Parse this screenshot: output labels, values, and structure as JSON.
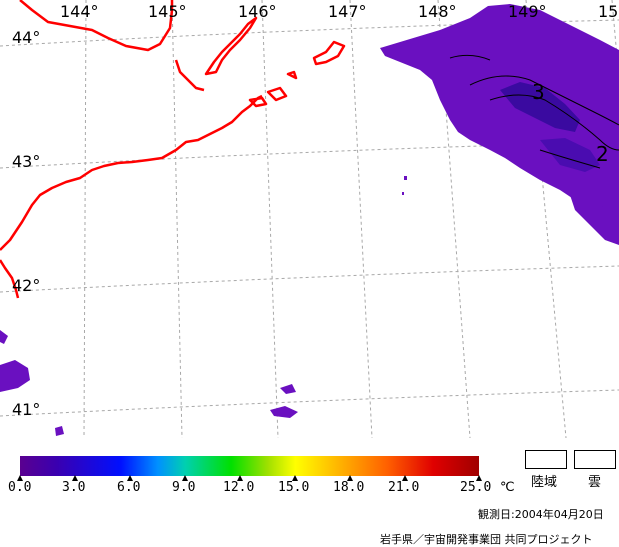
{
  "map": {
    "longitude_labels": [
      "144°",
      "145°",
      "146°",
      "147°",
      "148°",
      "149°",
      "15"
    ],
    "latitude_labels": [
      "44°",
      "43°",
      "42°",
      "41°"
    ],
    "contour_labels": [
      "3",
      "2"
    ],
    "colors": {
      "coast": "#ff0000",
      "grid": "#a0a0a0",
      "cloud_fill": "#6a10c0",
      "cloud_dark": "#3a0aa0"
    }
  },
  "colorbar": {
    "tick_labels": [
      "0.0",
      "3.0",
      "6.0",
      "9.0",
      "12.0",
      "15.0",
      "18.0",
      "21.0",
      "25.0"
    ],
    "unit": "℃"
  },
  "legend": {
    "land_label": "陸域",
    "cloud_label": "雲"
  },
  "footer": {
    "date": "観測日:2004年04月20日",
    "credit": "岩手県／宇宙開発事業団  共同プロジェクト"
  }
}
